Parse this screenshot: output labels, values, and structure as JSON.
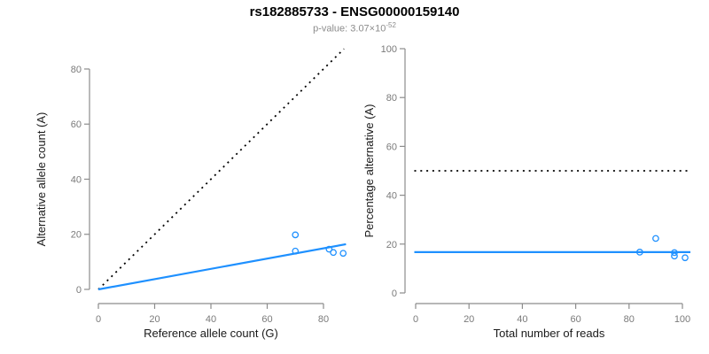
{
  "header": {
    "title": "rs182885733 - ENSG00000159140",
    "subtitle_prefix": "p-value: 3.07×10",
    "subtitle_exponent": "-52"
  },
  "colors": {
    "accent_blue": "#1E90FF",
    "dashed_line": "#000000",
    "axis_line": "#8C8C8C",
    "tick_label": "#7A7A7A",
    "axis_title": "#1A1A1A",
    "background": "#FFFFFF"
  },
  "chart_data": [
    {
      "type": "scatter",
      "panel": "left",
      "xlabel": "Reference allele count (G)",
      "ylabel": "Alternative allele count (A)",
      "xlim": [
        0,
        88
      ],
      "ylim": [
        0,
        88
      ],
      "xticks": [
        0,
        20,
        40,
        60,
        80
      ],
      "yticks": [
        0,
        20,
        40,
        60,
        80
      ],
      "grid": false,
      "points": [
        [
          70,
          19.8
        ],
        [
          70,
          13.9
        ],
        [
          82,
          14.6
        ],
        [
          83.5,
          13.4
        ],
        [
          87,
          13.1
        ]
      ],
      "lines": [
        {
          "name": "identity-line",
          "style": "dotted",
          "color": "#000000",
          "x1": 0,
          "y1": 0,
          "x2": 87.3,
          "y2": 87.3
        },
        {
          "name": "regression-line",
          "style": "solid",
          "color": "#1E90FF",
          "x1": 0,
          "y1": 0,
          "x2": 88,
          "y2": 16.4
        }
      ]
    },
    {
      "type": "scatter",
      "panel": "right",
      "xlabel": "Total number of reads",
      "ylabel": "Percentage alternative (A)",
      "xlim": [
        0,
        103
      ],
      "ylim": [
        0,
        100
      ],
      "xticks": [
        0,
        20,
        40,
        60,
        80,
        100
      ],
      "yticks": [
        0,
        20,
        40,
        60,
        80,
        100
      ],
      "grid": false,
      "points": [
        [
          84,
          16.7
        ],
        [
          90,
          22.3
        ],
        [
          97,
          16.5
        ],
        [
          97,
          15.1
        ],
        [
          101,
          14.4
        ]
      ],
      "lines": [
        {
          "name": "fifty-percent-line",
          "style": "dotted",
          "color": "#000000",
          "x1": -0.5,
          "y1": 50,
          "x2": 103,
          "y2": 50
        },
        {
          "name": "mean-percentage-line",
          "style": "solid",
          "color": "#1E90FF",
          "x1": -0.5,
          "y1": 16.7,
          "x2": 103,
          "y2": 16.7
        }
      ]
    }
  ]
}
